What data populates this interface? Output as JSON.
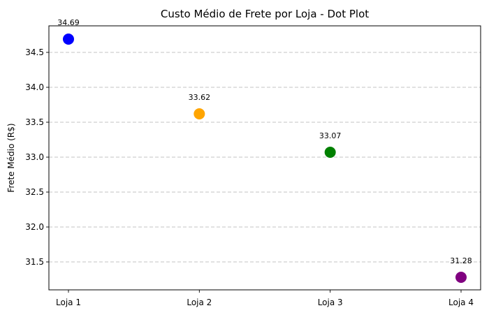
{
  "chart_data": {
    "type": "scatter",
    "title": "Custo Médio de Frete por Loja - Dot Plot",
    "xlabel": "",
    "ylabel": "Frete Médio (R$)",
    "categories": [
      "Loja 1",
      "Loja 2",
      "Loja 3",
      "Loja 4"
    ],
    "values": [
      34.69,
      33.62,
      33.07,
      31.28
    ],
    "data_labels": [
      "34.69",
      "33.62",
      "33.07",
      "31.28"
    ],
    "colors": [
      "#0000ff",
      "#ffa500",
      "#008000",
      "#800080"
    ],
    "ylim": [
      31.1,
      34.88
    ],
    "yticks": [
      31.5,
      32.0,
      32.5,
      33.0,
      33.5,
      34.0,
      34.5
    ],
    "ytick_labels": [
      "31.5",
      "32.0",
      "32.5",
      "33.0",
      "33.5",
      "34.0",
      "34.5"
    ],
    "grid": "y-dashed",
    "legend": "none"
  }
}
